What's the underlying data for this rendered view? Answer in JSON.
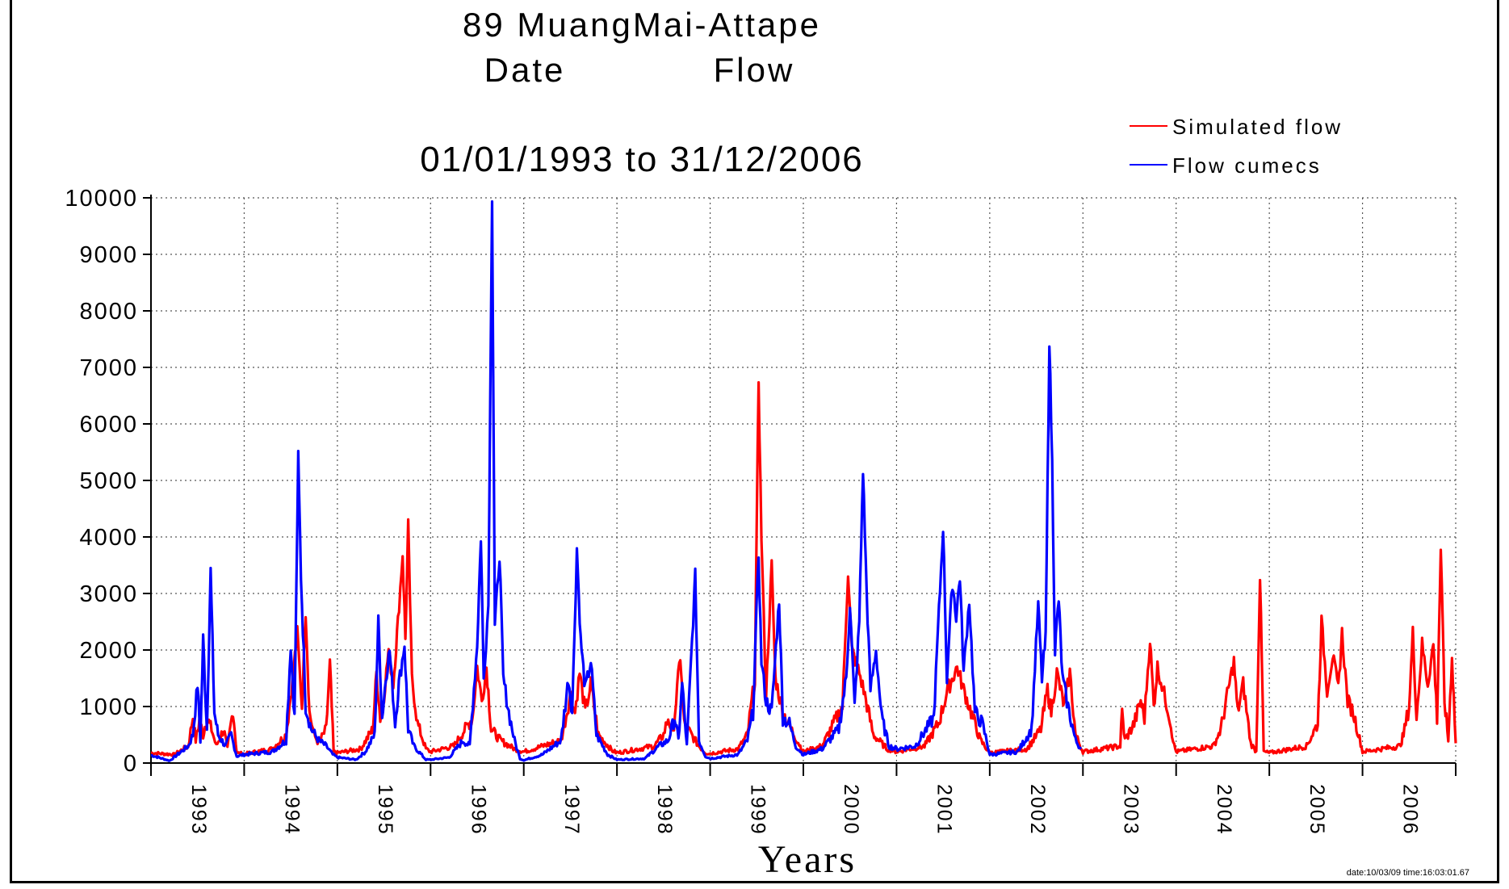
{
  "chart_data": {
    "type": "line",
    "title_line1": "89  MuangMai-Attape",
    "title_line2_left": "Date",
    "title_line2_right": "Flow",
    "subtitle": "01/01/1993  to  31/12/2006",
    "xlabel": "Years",
    "ylabel": "",
    "ylim": [
      0,
      10000
    ],
    "yticks": [
      0,
      1000,
      2000,
      3000,
      4000,
      5000,
      6000,
      7000,
      8000,
      9000,
      10000
    ],
    "xlim": [
      1993.0,
      2007.0
    ],
    "xtick_labels": [
      "1993",
      "1994",
      "1995",
      "1996",
      "1997",
      "1998",
      "1999",
      "2000",
      "2001",
      "2002",
      "2003",
      "2004",
      "2005",
      "2006"
    ],
    "grid": true,
    "legend_position": "top-right",
    "footer_stamp": "date:10/03/09  time:16:03:01.67",
    "series": [
      {
        "name": "Simulated flow",
        "color": "#ff0000",
        "baseflow": 170,
        "points": [
          [
            1993.0,
            180
          ],
          [
            1993.25,
            150
          ],
          [
            1993.4,
            300
          ],
          [
            1993.45,
            820
          ],
          [
            1993.48,
            400
          ],
          [
            1993.52,
            750
          ],
          [
            1993.56,
            500
          ],
          [
            1993.6,
            800
          ],
          [
            1993.65,
            600
          ],
          [
            1993.7,
            300
          ],
          [
            1993.78,
            600
          ],
          [
            1993.82,
            250
          ],
          [
            1993.88,
            950
          ],
          [
            1993.92,
            180
          ],
          [
            1994.0,
            160
          ],
          [
            1994.3,
            250
          ],
          [
            1994.45,
            500
          ],
          [
            1994.52,
            1500
          ],
          [
            1994.57,
            2300
          ],
          [
            1994.62,
            1000
          ],
          [
            1994.66,
            2700
          ],
          [
            1994.7,
            900
          ],
          [
            1994.75,
            500
          ],
          [
            1994.8,
            350
          ],
          [
            1994.88,
            600
          ],
          [
            1994.92,
            1750
          ],
          [
            1994.96,
            200
          ],
          [
            1995.0,
            180
          ],
          [
            1995.25,
            250
          ],
          [
            1995.38,
            600
          ],
          [
            1995.42,
            1600
          ],
          [
            1995.46,
            800
          ],
          [
            1995.5,
            1200
          ],
          [
            1995.55,
            2000
          ],
          [
            1995.6,
            1400
          ],
          [
            1995.65,
            2500
          ],
          [
            1995.7,
            3700
          ],
          [
            1995.73,
            2200
          ],
          [
            1995.76,
            4200
          ],
          [
            1995.8,
            1500
          ],
          [
            1995.86,
            700
          ],
          [
            1995.95,
            250
          ],
          [
            1996.0,
            200
          ],
          [
            1996.25,
            300
          ],
          [
            1996.45,
            800
          ],
          [
            1996.5,
            1700
          ],
          [
            1996.55,
            1100
          ],
          [
            1996.6,
            1700
          ],
          [
            1996.65,
            600
          ],
          [
            1996.75,
            400
          ],
          [
            1996.9,
            250
          ],
          [
            1997.0,
            200
          ],
          [
            1997.4,
            400
          ],
          [
            1997.5,
            1200
          ],
          [
            1997.55,
            900
          ],
          [
            1997.6,
            1600
          ],
          [
            1997.66,
            900
          ],
          [
            1997.72,
            1400
          ],
          [
            1997.8,
            500
          ],
          [
            1997.95,
            220
          ],
          [
            1998.0,
            180
          ],
          [
            1998.4,
            300
          ],
          [
            1998.5,
            500
          ],
          [
            1998.55,
            800
          ],
          [
            1998.6,
            500
          ],
          [
            1998.68,
            1900
          ],
          [
            1998.72,
            700
          ],
          [
            1998.8,
            500
          ],
          [
            1998.88,
            300
          ],
          [
            1998.95,
            180
          ],
          [
            1999.0,
            170
          ],
          [
            1999.3,
            250
          ],
          [
            1999.4,
            500
          ],
          [
            1999.48,
            1500
          ],
          [
            1999.52,
            6800
          ],
          [
            1999.55,
            4000
          ],
          [
            1999.6,
            1200
          ],
          [
            1999.66,
            3500
          ],
          [
            1999.7,
            1500
          ],
          [
            1999.78,
            900
          ],
          [
            1999.9,
            500
          ],
          [
            2000.0,
            200
          ],
          [
            2000.2,
            300
          ],
          [
            2000.42,
            1000
          ],
          [
            2000.48,
            3400
          ],
          [
            2000.52,
            2000
          ],
          [
            2000.6,
            1600
          ],
          [
            2000.66,
            1200
          ],
          [
            2000.75,
            500
          ],
          [
            2000.9,
            250
          ],
          [
            2001.0,
            200
          ],
          [
            2001.3,
            300
          ],
          [
            2001.45,
            700
          ],
          [
            2001.55,
            1300
          ],
          [
            2001.65,
            1700
          ],
          [
            2001.72,
            1300
          ],
          [
            2001.8,
            900
          ],
          [
            2001.9,
            400
          ],
          [
            2002.0,
            180
          ],
          [
            2002.4,
            250
          ],
          [
            2002.55,
            600
          ],
          [
            2002.62,
            1300
          ],
          [
            2002.66,
            900
          ],
          [
            2002.72,
            1600
          ],
          [
            2002.8,
            1000
          ],
          [
            2002.86,
            1600
          ],
          [
            2002.92,
            500
          ],
          [
            2003.0,
            200
          ],
          [
            2003.4,
            300
          ],
          [
            2003.42,
            900
          ],
          [
            2003.45,
            400
          ],
          [
            2003.55,
            700
          ],
          [
            2003.62,
            1100
          ],
          [
            2003.66,
            800
          ],
          [
            2003.72,
            2200
          ],
          [
            2003.76,
            1000
          ],
          [
            2003.8,
            1700
          ],
          [
            2003.86,
            1300
          ],
          [
            2003.92,
            900
          ],
          [
            2003.98,
            300
          ],
          [
            2004.0,
            200
          ],
          [
            2004.4,
            300
          ],
          [
            2004.48,
            600
          ],
          [
            2004.56,
            1300
          ],
          [
            2004.62,
            1800
          ],
          [
            2004.66,
            900
          ],
          [
            2004.72,
            1400
          ],
          [
            2004.8,
            350
          ],
          [
            2004.86,
            200
          ],
          [
            2004.9,
            3300
          ],
          [
            2004.94,
            200
          ],
          [
            2005.0,
            180
          ],
          [
            2005.4,
            300
          ],
          [
            2005.52,
            700
          ],
          [
            2005.56,
            2500
          ],
          [
            2005.62,
            1300
          ],
          [
            2005.68,
            1900
          ],
          [
            2005.74,
            1300
          ],
          [
            2005.78,
            2300
          ],
          [
            2005.84,
            1100
          ],
          [
            2005.9,
            900
          ],
          [
            2005.98,
            350
          ],
          [
            2006.0,
            200
          ],
          [
            2006.4,
            300
          ],
          [
            2006.44,
            500
          ],
          [
            2006.5,
            1000
          ],
          [
            2006.54,
            2300
          ],
          [
            2006.58,
            800
          ],
          [
            2006.64,
            2100
          ],
          [
            2006.7,
            1400
          ],
          [
            2006.76,
            2100
          ],
          [
            2006.8,
            800
          ],
          [
            2006.84,
            3800
          ],
          [
            2006.88,
            1100
          ],
          [
            2006.92,
            400
          ],
          [
            2006.96,
            1900
          ],
          [
            2007.0,
            350
          ]
        ]
      },
      {
        "name": "Flow cumecs",
        "color": "#0000ff",
        "baseflow": 120,
        "points": [
          [
            1993.0,
            140
          ],
          [
            1993.2,
            40
          ],
          [
            1993.4,
            300
          ],
          [
            1993.45,
            500
          ],
          [
            1993.5,
            1400
          ],
          [
            1993.53,
            400
          ],
          [
            1993.56,
            2200
          ],
          [
            1993.6,
            600
          ],
          [
            1993.64,
            3400
          ],
          [
            1993.68,
            900
          ],
          [
            1993.72,
            500
          ],
          [
            1993.8,
            300
          ],
          [
            1993.86,
            500
          ],
          [
            1993.92,
            120
          ],
          [
            1994.0,
            150
          ],
          [
            1994.3,
            200
          ],
          [
            1994.45,
            400
          ],
          [
            1994.5,
            2100
          ],
          [
            1994.54,
            800
          ],
          [
            1994.58,
            5400
          ],
          [
            1994.61,
            3300
          ],
          [
            1994.66,
            1000
          ],
          [
            1994.72,
            600
          ],
          [
            1994.8,
            400
          ],
          [
            1994.88,
            300
          ],
          [
            1994.95,
            150
          ],
          [
            1995.0,
            100
          ],
          [
            1995.2,
            60
          ],
          [
            1995.3,
            200
          ],
          [
            1995.4,
            500
          ],
          [
            1995.44,
            2500
          ],
          [
            1995.48,
            800
          ],
          [
            1995.52,
            1500
          ],
          [
            1995.56,
            2000
          ],
          [
            1995.62,
            700
          ],
          [
            1995.66,
            1400
          ],
          [
            1995.72,
            2100
          ],
          [
            1995.76,
            600
          ],
          [
            1995.82,
            300
          ],
          [
            1995.95,
            60
          ],
          [
            1996.0,
            60
          ],
          [
            1996.2,
            100
          ],
          [
            1996.35,
            400
          ],
          [
            1996.42,
            300
          ],
          [
            1996.5,
            2100
          ],
          [
            1996.54,
            4000
          ],
          [
            1996.57,
            1500
          ],
          [
            1996.62,
            2800
          ],
          [
            1996.66,
            10050
          ],
          [
            1996.69,
            2400
          ],
          [
            1996.74,
            3700
          ],
          [
            1996.78,
            1500
          ],
          [
            1996.84,
            900
          ],
          [
            1996.9,
            400
          ],
          [
            1996.96,
            80
          ],
          [
            1997.0,
            50
          ],
          [
            1997.2,
            150
          ],
          [
            1997.4,
            400
          ],
          [
            1997.48,
            1500
          ],
          [
            1997.52,
            900
          ],
          [
            1997.57,
            3800
          ],
          [
            1997.61,
            2200
          ],
          [
            1997.66,
            1300
          ],
          [
            1997.72,
            1800
          ],
          [
            1997.78,
            500
          ],
          [
            1997.9,
            150
          ],
          [
            1998.0,
            60
          ],
          [
            1998.3,
            80
          ],
          [
            1998.45,
            300
          ],
          [
            1998.55,
            400
          ],
          [
            1998.62,
            800
          ],
          [
            1998.66,
            400
          ],
          [
            1998.7,
            1400
          ],
          [
            1998.75,
            300
          ],
          [
            1998.84,
            3300
          ],
          [
            1998.88,
            400
          ],
          [
            1998.95,
            120
          ],
          [
            1999.0,
            80
          ],
          [
            1999.3,
            150
          ],
          [
            1999.4,
            400
          ],
          [
            1999.46,
            900
          ],
          [
            1999.52,
            3700
          ],
          [
            1999.55,
            1800
          ],
          [
            1999.6,
            1100
          ],
          [
            1999.66,
            900
          ],
          [
            1999.74,
            2900
          ],
          [
            1999.78,
            800
          ],
          [
            1999.85,
            700
          ],
          [
            1999.92,
            300
          ],
          [
            2000.0,
            150
          ],
          [
            2000.2,
            250
          ],
          [
            2000.38,
            600
          ],
          [
            2000.46,
            1500
          ],
          [
            2000.5,
            2800
          ],
          [
            2000.55,
            1000
          ],
          [
            2000.6,
            2500
          ],
          [
            2000.64,
            5200
          ],
          [
            2000.68,
            3000
          ],
          [
            2000.72,
            1300
          ],
          [
            2000.78,
            2000
          ],
          [
            2000.84,
            800
          ],
          [
            2000.92,
            300
          ],
          [
            2001.0,
            250
          ],
          [
            2001.2,
            300
          ],
          [
            2001.4,
            800
          ],
          [
            2001.5,
            4200
          ],
          [
            2001.54,
            1500
          ],
          [
            2001.6,
            3200
          ],
          [
            2001.64,
            2600
          ],
          [
            2001.68,
            3300
          ],
          [
            2001.72,
            1600
          ],
          [
            2001.78,
            2900
          ],
          [
            2001.84,
            900
          ],
          [
            2001.92,
            700
          ],
          [
            2001.98,
            300
          ],
          [
            2002.0,
            150
          ],
          [
            2002.3,
            200
          ],
          [
            2002.45,
            600
          ],
          [
            2002.52,
            2800
          ],
          [
            2002.56,
            1500
          ],
          [
            2002.6,
            2200
          ],
          [
            2002.64,
            7500
          ],
          [
            2002.67,
            5300
          ],
          [
            2002.7,
            2000
          ],
          [
            2002.74,
            2900
          ],
          [
            2002.78,
            1500
          ],
          [
            2002.84,
            1000
          ],
          [
            2002.92,
            400
          ],
          [
            2002.98,
            250
          ]
        ]
      }
    ]
  }
}
